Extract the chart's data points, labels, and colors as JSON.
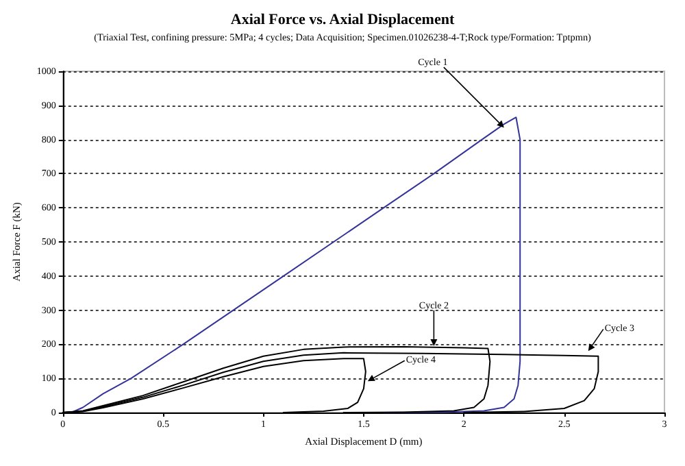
{
  "chart_data": {
    "type": "line",
    "title": "Axial Force vs. Axial Displacement",
    "subtitle": "(Triaxial Test, confining pressure: 5MPa; 4 cycles; Data Acquisition; Specimen.01026238-4-T;Rock type/Formation: Tptpmn)",
    "xlabel": "Axial Displacement D (mm)",
    "ylabel": "Axial Force F (kN)",
    "xlim": [
      0,
      3
    ],
    "xticks": [
      0,
      0.5,
      1,
      1.5,
      2,
      2.5,
      3
    ],
    "ylim": [
      0,
      1000
    ],
    "yticks": [
      0,
      100,
      200,
      300,
      400,
      500,
      600,
      700,
      800,
      900,
      1000
    ],
    "grid": "y",
    "marker": "none",
    "line_style": "solid",
    "series": [
      {
        "color": "#333399",
        "x": [
          0,
          0.05,
          0.1,
          0.2,
          0.34,
          0.6,
          0.85,
          1.1,
          1.35,
          1.6,
          1.85,
          2.09,
          2.2,
          2.26,
          2.28,
          2.28,
          2.28,
          2.28,
          2.27,
          2.25,
          2.2,
          2.1,
          1.9,
          1.6
        ],
        "values": [
          0,
          2,
          15,
          55,
          100,
          200,
          300,
          400,
          500,
          600,
          700,
          800,
          845,
          865,
          800,
          500,
          250,
          150,
          80,
          40,
          15,
          5,
          1,
          0
        ]
      },
      {
        "color": "#000000",
        "x": [
          0,
          0.1,
          0.2,
          0.4,
          0.6,
          0.8,
          1.0,
          1.2,
          1.4,
          1.7,
          2.0,
          2.12,
          2.13,
          2.12,
          2.1,
          2.05,
          1.95,
          1.7,
          1.4
        ],
        "values": [
          0,
          5,
          20,
          50,
          90,
          130,
          165,
          185,
          192,
          193,
          190,
          188,
          150,
          80,
          40,
          15,
          5,
          1,
          0
        ]
      },
      {
        "color": "#000000",
        "x": [
          0,
          0.1,
          0.2,
          0.4,
          0.6,
          0.8,
          1.0,
          1.2,
          1.4,
          1.8,
          2.2,
          2.5,
          2.67,
          2.67,
          2.65,
          2.6,
          2.5,
          2.3,
          2.0
        ],
        "values": [
          0,
          4,
          17,
          45,
          80,
          118,
          150,
          168,
          175,
          173,
          170,
          167,
          165,
          120,
          70,
          35,
          12,
          3,
          0
        ]
      },
      {
        "color": "#000000",
        "x": [
          0,
          0.1,
          0.2,
          0.4,
          0.6,
          0.8,
          1.0,
          1.2,
          1.4,
          1.5,
          1.51,
          1.5,
          1.47,
          1.42,
          1.3,
          1.1
        ],
        "values": [
          0,
          3,
          14,
          40,
          72,
          105,
          135,
          152,
          158,
          158,
          120,
          70,
          30,
          12,
          4,
          0
        ]
      }
    ],
    "annotations": [
      {
        "text": "Cycle 1",
        "x": 2.2,
        "y": 835
      },
      {
        "text": "Cycle 2",
        "x": 1.85,
        "y": 195
      },
      {
        "text": "Cycle 3",
        "x": 2.62,
        "y": 180
      },
      {
        "text": "Cycle 4",
        "x": 1.52,
        "y": 92
      }
    ]
  }
}
